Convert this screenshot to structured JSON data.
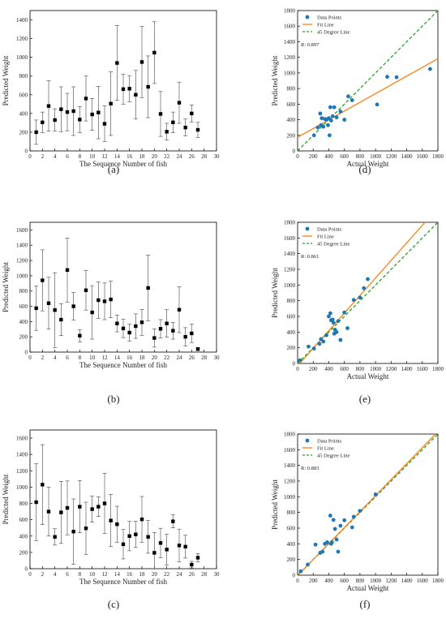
{
  "figure": {
    "colors": {
      "points": "#1f77b4",
      "fit": "#ff7f0e",
      "diag": "#2ca02c",
      "marker": "#000000"
    },
    "legend_labels": {
      "points": "Data Points",
      "fit": "Fit Line",
      "diag": "45 Degree Line"
    }
  },
  "chart_data": [
    {
      "panel": "(a)",
      "type": "scatter",
      "error_bars": true,
      "xlabel": "The Sequence Number of fish",
      "ylabel": "Predicted Weight",
      "xlim": [
        0,
        30
      ],
      "ylim": [
        0,
        1500
      ],
      "xticks": [
        0,
        2,
        4,
        6,
        8,
        10,
        12,
        14,
        16,
        18,
        20,
        22,
        24,
        26,
        28,
        30
      ],
      "yticks": [
        0,
        200,
        400,
        600,
        800,
        1000,
        1200,
        1400
      ],
      "x": [
        1,
        2,
        3,
        4,
        5,
        6,
        7,
        8,
        9,
        10,
        11,
        12,
        13,
        14,
        15,
        16,
        17,
        18,
        19,
        20,
        21,
        22,
        23,
        24,
        25,
        26,
        27
      ],
      "y": [
        200,
        305,
        480,
        330,
        445,
        415,
        425,
        335,
        560,
        390,
        410,
        290,
        505,
        940,
        660,
        665,
        600,
        950,
        685,
        1050,
        395,
        205,
        305,
        515,
        250,
        400,
        225
      ],
      "err": [
        130,
        110,
        270,
        120,
        240,
        200,
        260,
        140,
        240,
        170,
        280,
        190,
        340,
        400,
        160,
        140,
        260,
        380,
        330,
        330,
        240,
        90,
        110,
        220,
        90,
        90,
        80
      ]
    },
    {
      "panel": "(b)",
      "type": "scatter",
      "error_bars": true,
      "xlabel": "The Sequence Number of fish",
      "ylabel": "Predicted Weight",
      "xlim": [
        0,
        30
      ],
      "ylim": [
        0,
        1700
      ],
      "xticks": [
        0,
        2,
        4,
        6,
        8,
        10,
        12,
        14,
        16,
        18,
        20,
        22,
        24,
        26,
        28,
        30
      ],
      "yticks": [
        0,
        200,
        400,
        600,
        800,
        1000,
        1200,
        1400,
        1600
      ],
      "x": [
        1,
        2,
        3,
        4,
        5,
        6,
        7,
        8,
        9,
        10,
        11,
        12,
        13,
        14,
        15,
        16,
        17,
        18,
        19,
        20,
        21,
        22,
        23,
        24,
        25,
        26,
        27
      ],
      "y": [
        575,
        940,
        640,
        550,
        425,
        1075,
        600,
        215,
        810,
        520,
        680,
        665,
        690,
        375,
        310,
        255,
        340,
        390,
        840,
        185,
        305,
        375,
        280,
        555,
        200,
        245,
        40
      ],
      "err": [
        290,
        400,
        340,
        490,
        210,
        420,
        180,
        80,
        260,
        350,
        240,
        240,
        240,
        110,
        120,
        110,
        160,
        170,
        430,
        120,
        120,
        180,
        110,
        300,
        120,
        120,
        20
      ]
    },
    {
      "panel": "(c)",
      "type": "scatter",
      "error_bars": true,
      "xlabel": "The Sequence Number of fish",
      "ylabel": "Predicted Weight",
      "xlim": [
        0,
        30
      ],
      "ylim": [
        0,
        1700
      ],
      "xticks": [
        0,
        2,
        4,
        6,
        8,
        10,
        12,
        14,
        16,
        18,
        20,
        22,
        24,
        26,
        28,
        30
      ],
      "yticks": [
        0,
        200,
        400,
        600,
        800,
        1000,
        1200,
        1400,
        1600
      ],
      "x": [
        1,
        2,
        3,
        4,
        5,
        6,
        7,
        8,
        9,
        10,
        11,
        12,
        13,
        14,
        15,
        16,
        17,
        18,
        19,
        20,
        21,
        22,
        23,
        24,
        25,
        26,
        27
      ],
      "y": [
        815,
        1030,
        700,
        390,
        690,
        745,
        455,
        760,
        495,
        730,
        760,
        800,
        590,
        545,
        300,
        400,
        420,
        605,
        390,
        195,
        315,
        235,
        580,
        285,
        270,
        50,
        135
      ],
      "err": [
        470,
        490,
        300,
        100,
        380,
        330,
        400,
        320,
        320,
        160,
        120,
        370,
        320,
        220,
        180,
        180,
        160,
        280,
        200,
        250,
        180,
        190,
        80,
        200,
        140,
        40,
        50
      ]
    },
    {
      "panel": "(d)",
      "type": "scatter",
      "regression": true,
      "xlabel": "Actual Weight",
      "ylabel": "Predicted Weight",
      "xlim": [
        0,
        1800
      ],
      "ylim": [
        0,
        1800
      ],
      "xticks": [
        0,
        200,
        400,
        600,
        800,
        1000,
        1200,
        1400,
        1600,
        1800
      ],
      "yticks": [
        0,
        200,
        400,
        600,
        800,
        1000,
        1200,
        1400,
        1600,
        1800
      ],
      "r_text": "R: 0.897",
      "fit": {
        "slope": 0.56,
        "intercept": 175
      },
      "x": [
        210,
        260,
        290,
        300,
        310,
        330,
        350,
        370,
        390,
        400,
        410,
        420,
        430,
        450,
        470,
        500,
        550,
        600,
        650,
        700,
        1020,
        1150,
        1270,
        1700
      ],
      "y": [
        200,
        300,
        480,
        330,
        420,
        310,
        410,
        400,
        330,
        420,
        200,
        560,
        390,
        445,
        560,
        430,
        505,
        400,
        700,
        650,
        595,
        950,
        945,
        1050
      ]
    },
    {
      "panel": "(e)",
      "type": "scatter",
      "regression": true,
      "xlabel": "Actual Weight",
      "ylabel": "Predicted Weight",
      "xlim": [
        0,
        1800
      ],
      "ylim": [
        0,
        1800
      ],
      "xticks": [
        0,
        200,
        400,
        600,
        800,
        1000,
        1200,
        1400,
        1600,
        1800
      ],
      "yticks": [
        0,
        200,
        400,
        600,
        800,
        1000,
        1200,
        1400,
        1600,
        1800
      ],
      "r_text": "R: 0.861",
      "fit": {
        "slope": 1.12,
        "intercept": -30
      },
      "x": [
        30,
        140,
        210,
        280,
        300,
        330,
        370,
        400,
        420,
        430,
        450,
        460,
        470,
        480,
        500,
        520,
        550,
        600,
        640,
        720,
        800,
        850,
        900
      ],
      "y": [
        40,
        215,
        190,
        250,
        310,
        280,
        360,
        600,
        640,
        550,
        560,
        520,
        380,
        430,
        400,
        540,
        300,
        650,
        450,
        810,
        840,
        960,
        1075
      ]
    },
    {
      "panel": "(f)",
      "type": "scatter",
      "regression": true,
      "xlabel": "Actual Weight",
      "ylabel": "Predicted Weight",
      "xlim": [
        0,
        1800
      ],
      "ylim": [
        0,
        1800
      ],
      "xticks": [
        0,
        200,
        400,
        600,
        800,
        1000,
        1200,
        1400,
        1600,
        1800
      ],
      "yticks": [
        0,
        200,
        400,
        600,
        800,
        1000,
        1200,
        1400,
        1600,
        1800
      ],
      "r_text": "R: 0.883",
      "fit": {
        "slope": 1.02,
        "intercept": -5
      },
      "x": [
        40,
        130,
        230,
        290,
        320,
        350,
        380,
        420,
        430,
        440,
        460,
        480,
        500,
        520,
        550,
        600,
        700,
        720,
        800,
        1000
      ],
      "y": [
        50,
        135,
        390,
        285,
        300,
        400,
        420,
        760,
        400,
        420,
        705,
        590,
        455,
        300,
        630,
        700,
        610,
        745,
        820,
        1030
      ]
    }
  ]
}
